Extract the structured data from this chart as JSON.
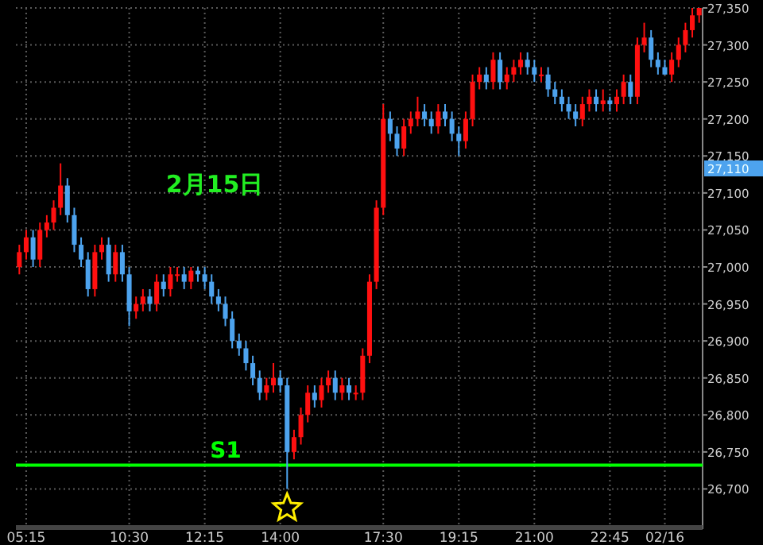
{
  "chart_data": {
    "type": "candlestick",
    "categories": [
      null,
      "05:15",
      null,
      null,
      null,
      null,
      null,
      null,
      null,
      null,
      null,
      null,
      null,
      null,
      null,
      null,
      "10:30",
      null,
      null,
      null,
      null,
      null,
      null,
      null,
      null,
      null,
      null,
      "12:15",
      null,
      null,
      null,
      null,
      null,
      null,
      null,
      null,
      null,
      null,
      "14:00",
      null,
      null,
      null,
      null,
      null,
      null,
      null,
      null,
      null,
      null,
      null,
      null,
      null,
      null,
      "17:30",
      null,
      null,
      null,
      null,
      null,
      null,
      null,
      null,
      null,
      null,
      "19:15",
      null,
      null,
      null,
      null,
      null,
      null,
      null,
      null,
      null,
      null,
      "21:00",
      null,
      null,
      null,
      null,
      null,
      null,
      null,
      null,
      null,
      null,
      "22:45",
      null,
      null,
      null,
      null,
      null,
      null,
      null,
      "02/16",
      null,
      null,
      null,
      null,
      null
    ],
    "ohlc": [
      [
        27000,
        27030,
        26990,
        27020
      ],
      [
        27020,
        27050,
        27010,
        27040
      ],
      [
        27040,
        27050,
        27000,
        27010
      ],
      [
        27010,
        27060,
        27000,
        27050
      ],
      [
        27050,
        27070,
        27040,
        27060
      ],
      [
        27060,
        27090,
        27050,
        27080
      ],
      [
        27080,
        27140,
        27070,
        27110
      ],
      [
        27110,
        27120,
        27060,
        27070
      ],
      [
        27070,
        27080,
        27020,
        27030
      ],
      [
        27030,
        27040,
        27000,
        27010
      ],
      [
        27010,
        27020,
        26960,
        26970
      ],
      [
        26970,
        27030,
        26960,
        27020
      ],
      [
        27020,
        27040,
        27010,
        27030
      ],
      [
        27030,
        27040,
        26980,
        26990
      ],
      [
        26990,
        27030,
        26980,
        27020
      ],
      [
        27020,
        27030,
        26980,
        26990
      ],
      [
        26990,
        27000,
        26920,
        26940
      ],
      [
        26940,
        26960,
        26930,
        26950
      ],
      [
        26950,
        26970,
        26940,
        26960
      ],
      [
        26960,
        26970,
        26940,
        26950
      ],
      [
        26950,
        26990,
        26940,
        26980
      ],
      [
        26980,
        26990,
        26960,
        26970
      ],
      [
        26970,
        27000,
        26960,
        26990
      ],
      [
        26990,
        27000,
        26980,
        26990
      ],
      [
        26990,
        27000,
        26970,
        26980
      ],
      [
        26980,
        27000,
        26970,
        26995
      ],
      [
        26995,
        27000,
        26980,
        26990
      ],
      [
        26990,
        27000,
        26970,
        26980
      ],
      [
        26980,
        26990,
        26950,
        26960
      ],
      [
        26960,
        26970,
        26940,
        26950
      ],
      [
        26950,
        26960,
        26920,
        26930
      ],
      [
        26930,
        26940,
        26890,
        26900
      ],
      [
        26900,
        26910,
        26880,
        26890
      ],
      [
        26890,
        26900,
        26860,
        26870
      ],
      [
        26870,
        26880,
        26840,
        26850
      ],
      [
        26850,
        26860,
        26820,
        26830
      ],
      [
        26830,
        26850,
        26820,
        26840
      ],
      [
        26840,
        26870,
        26830,
        26850
      ],
      [
        26850,
        26860,
        26830,
        26840
      ],
      [
        26840,
        26850,
        26700,
        26750
      ],
      [
        26750,
        26780,
        26740,
        26770
      ],
      [
        26770,
        26810,
        26760,
        26800
      ],
      [
        26800,
        26840,
        26790,
        26830
      ],
      [
        26830,
        26840,
        26810,
        26820
      ],
      [
        26820,
        26850,
        26810,
        26840
      ],
      [
        26840,
        26860,
        26830,
        26850
      ],
      [
        26850,
        26860,
        26820,
        26830
      ],
      [
        26830,
        26850,
        26820,
        26840
      ],
      [
        26840,
        26850,
        26820,
        26830
      ],
      [
        26830,
        26840,
        26820,
        26830
      ],
      [
        26830,
        26890,
        26820,
        26880
      ],
      [
        26880,
        26990,
        26870,
        26980
      ],
      [
        26980,
        27090,
        26970,
        27080
      ],
      [
        27080,
        27220,
        27070,
        27200
      ],
      [
        27200,
        27210,
        27170,
        27180
      ],
      [
        27180,
        27190,
        27150,
        27160
      ],
      [
        27160,
        27200,
        27150,
        27190
      ],
      [
        27190,
        27210,
        27180,
        27200
      ],
      [
        27200,
        27230,
        27190,
        27210
      ],
      [
        27210,
        27220,
        27190,
        27200
      ],
      [
        27200,
        27210,
        27180,
        27190
      ],
      [
        27190,
        27220,
        27180,
        27210
      ],
      [
        27210,
        27220,
        27190,
        27200
      ],
      [
        27200,
        27210,
        27170,
        27180
      ],
      [
        27180,
        27190,
        27150,
        27170
      ],
      [
        27170,
        27210,
        27160,
        27200
      ],
      [
        27200,
        27260,
        27190,
        27250
      ],
      [
        27250,
        27270,
        27240,
        27260
      ],
      [
        27260,
        27270,
        27240,
        27250
      ],
      [
        27250,
        27290,
        27240,
        27280
      ],
      [
        27280,
        27290,
        27240,
        27250
      ],
      [
        27250,
        27270,
        27240,
        27260
      ],
      [
        27260,
        27280,
        27250,
        27270
      ],
      [
        27270,
        27290,
        27260,
        27280
      ],
      [
        27280,
        27290,
        27260,
        27270
      ],
      [
        27270,
        27280,
        27250,
        27260
      ],
      [
        27260,
        27270,
        27250,
        27260
      ],
      [
        27260,
        27270,
        27230,
        27240
      ],
      [
        27240,
        27250,
        27220,
        27230
      ],
      [
        27230,
        27240,
        27210,
        27220
      ],
      [
        27220,
        27230,
        27200,
        27210
      ],
      [
        27210,
        27220,
        27190,
        27200
      ],
      [
        27200,
        27230,
        27190,
        27220
      ],
      [
        27220,
        27240,
        27210,
        27230
      ],
      [
        27230,
        27240,
        27210,
        27220
      ],
      [
        27220,
        27240,
        27210,
        27225
      ],
      [
        27225,
        27230,
        27210,
        27220
      ],
      [
        27220,
        27240,
        27210,
        27230
      ],
      [
        27230,
        27260,
        27220,
        27250
      ],
      [
        27250,
        27260,
        27220,
        27230
      ],
      [
        27230,
        27310,
        27220,
        27300
      ],
      [
        27300,
        27330,
        27290,
        27310
      ],
      [
        27310,
        27320,
        27270,
        27280
      ],
      [
        27280,
        27290,
        27260,
        27270
      ],
      [
        27270,
        27280,
        27260,
        27260
      ],
      [
        27260,
        27290,
        27250,
        27280
      ],
      [
        27280,
        27310,
        27270,
        27300
      ],
      [
        27300,
        27330,
        27290,
        27320
      ],
      [
        27320,
        27350,
        27310,
        27340
      ],
      [
        27340,
        27350,
        27330,
        27350
      ]
    ],
    "ylim": [
      26650,
      27350
    ],
    "yticks": [
      {
        "value": 26700,
        "label": "26,700"
      },
      {
        "value": 26750,
        "label": "26,750"
      },
      {
        "value": 26800,
        "label": "26,800"
      },
      {
        "value": 26850,
        "label": "26,850"
      },
      {
        "value": 26900,
        "label": "26,900"
      },
      {
        "value": 26950,
        "label": "26,950"
      },
      {
        "value": 27000,
        "label": "27,000"
      },
      {
        "value": 27050,
        "label": "27,050"
      },
      {
        "value": 27100,
        "label": "27,100"
      },
      {
        "value": 27150,
        "label": "27,150"
      },
      {
        "value": 27200,
        "label": "27,200"
      },
      {
        "value": 27250,
        "label": "27,250"
      },
      {
        "value": 27300,
        "label": "27,300"
      },
      {
        "value": 27350,
        "label": "27,350"
      }
    ],
    "grid": true,
    "ref_lines": [
      {
        "axis": "y",
        "value": 26732,
        "label": "S1",
        "color": "#00ff00"
      }
    ],
    "annotations": [
      "2月15日",
      "27,110"
    ]
  }
}
